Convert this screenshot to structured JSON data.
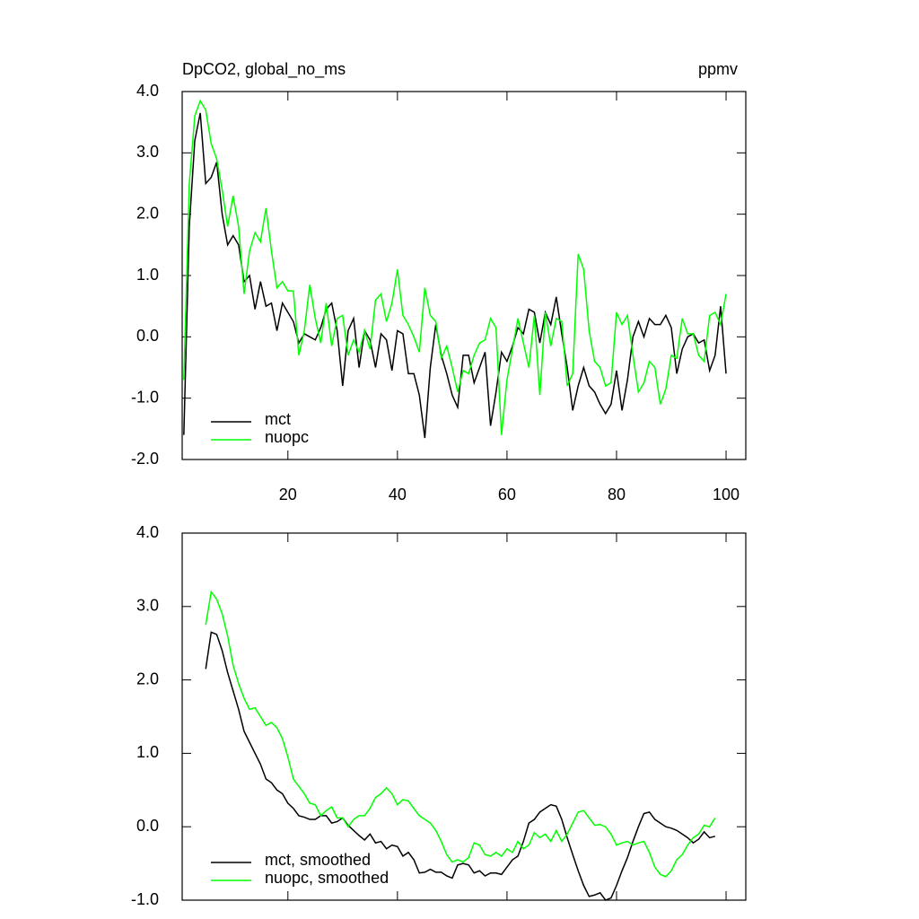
{
  "chart_data": [
    {
      "type": "line",
      "title": "DpCO2, global_no_ms",
      "units": "ppmv",
      "x": [
        1,
        2,
        3,
        4,
        5,
        6,
        7,
        8,
        9,
        10,
        11,
        12,
        13,
        14,
        15,
        16,
        17,
        18,
        19,
        20,
        21,
        22,
        23,
        24,
        25,
        26,
        27,
        28,
        29,
        30,
        31,
        32,
        33,
        34,
        35,
        36,
        37,
        38,
        39,
        40,
        41,
        42,
        43,
        44,
        45,
        46,
        47,
        48,
        49,
        50,
        51,
        52,
        53,
        54,
        55,
        56,
        57,
        58,
        59,
        60,
        61,
        62,
        63,
        64,
        65,
        66,
        67,
        68,
        69,
        70,
        71,
        72,
        73,
        74,
        75,
        76,
        77,
        78,
        79,
        80,
        81,
        82,
        83,
        84,
        85,
        86,
        87,
        88,
        89,
        90,
        91,
        92,
        93,
        94,
        95,
        96,
        97,
        98,
        99,
        100
      ],
      "series": [
        {
          "name": "mct",
          "color": "#000000",
          "values": [
            -1.6,
            1.8,
            3.2,
            3.65,
            2.5,
            2.6,
            2.85,
            2.0,
            1.5,
            1.65,
            1.5,
            0.9,
            1.0,
            0.45,
            0.9,
            0.5,
            0.55,
            0.1,
            0.55,
            0.4,
            0.25,
            -0.1,
            0.05,
            0.0,
            -0.05,
            0.15,
            0.45,
            0.55,
            0.1,
            -0.8,
            0.1,
            0.3,
            -0.5,
            0.1,
            -0.05,
            -0.5,
            0.05,
            -0.05,
            -0.55,
            0.1,
            0.05,
            -0.6,
            -0.6,
            -0.95,
            -1.65,
            -0.5,
            0.2,
            -0.3,
            -0.6,
            -0.95,
            -1.15,
            -0.3,
            -0.3,
            -0.75,
            -0.5,
            -0.25,
            -1.45,
            -0.9,
            -0.25,
            -0.4,
            -0.15,
            0.15,
            0.05,
            0.45,
            0.4,
            -0.1,
            0.4,
            0.2,
            0.65,
            0.05,
            -0.5,
            -1.2,
            -0.8,
            -0.5,
            -0.8,
            -0.9,
            -1.1,
            -1.25,
            -1.1,
            -0.55,
            -1.2,
            -0.7,
            0.0,
            0.25,
            0.0,
            0.3,
            0.2,
            0.2,
            0.35,
            0.15,
            -0.6,
            -0.2,
            0.0,
            0.05,
            -0.1,
            -0.05,
            -0.55,
            -0.3,
            0.5,
            -0.6
          ]
        },
        {
          "name": "nuopc",
          "color": "#00ff00",
          "values": [
            -0.7,
            2.5,
            3.6,
            3.85,
            3.7,
            3.15,
            2.9,
            2.4,
            1.8,
            2.3,
            1.8,
            0.7,
            1.4,
            1.7,
            1.55,
            2.1,
            1.4,
            0.8,
            0.9,
            0.75,
            0.75,
            -0.3,
            0.1,
            0.85,
            0.3,
            -0.1,
            0.55,
            -0.15,
            0.3,
            0.35,
            -0.3,
            -0.05,
            -0.25,
            0.1,
            -0.2,
            0.6,
            0.7,
            0.25,
            0.55,
            1.1,
            0.35,
            0.2,
            0.0,
            -0.25,
            0.8,
            0.35,
            0.25,
            -0.35,
            -0.15,
            -0.5,
            -0.9,
            -0.55,
            -0.6,
            -0.3,
            -0.1,
            -0.05,
            0.3,
            0.15,
            -1.6,
            -0.7,
            -0.2,
            0.3,
            -0.1,
            -0.5,
            0.35,
            -0.95,
            0.4,
            -0.15,
            0.3,
            0.25,
            -0.8,
            -0.6,
            1.35,
            1.1,
            0.1,
            -0.4,
            -0.5,
            -0.8,
            -0.75,
            0.4,
            0.2,
            0.35,
            -0.3,
            -0.9,
            -0.75,
            -0.4,
            -0.5,
            -1.1,
            -0.85,
            -0.3,
            -0.35,
            0.3,
            0.05,
            0.05,
            -0.3,
            -0.4,
            0.35,
            0.4,
            0.2,
            0.7
          ]
        }
      ],
      "xlim": [
        0.7,
        103.6
      ],
      "xticks": [
        20,
        40,
        60,
        80,
        100
      ],
      "ylim": [
        -2,
        4
      ],
      "yticks": [
        {
          "value": -2,
          "label": "-2.0"
        },
        {
          "value": -1,
          "label": "-1.0"
        },
        {
          "value": 0,
          "label": "0.0"
        },
        {
          "value": 1,
          "label": "1.0"
        },
        {
          "value": 2,
          "label": "2.0"
        },
        {
          "value": 3,
          "label": "3.0"
        },
        {
          "value": 4,
          "label": "4.0"
        }
      ],
      "legend": "lower left"
    },
    {
      "type": "line",
      "x": [
        5,
        6,
        7,
        8,
        9,
        10,
        11,
        12,
        13,
        14,
        15,
        16,
        17,
        18,
        19,
        20,
        21,
        22,
        23,
        24,
        25,
        26,
        27,
        28,
        29,
        30,
        31,
        32,
        33,
        34,
        35,
        36,
        37,
        38,
        39,
        40,
        41,
        42,
        43,
        44,
        45,
        46,
        47,
        48,
        49,
        50,
        51,
        52,
        53,
        54,
        55,
        56,
        57,
        58,
        59,
        60,
        61,
        62,
        63,
        64,
        65,
        66,
        67,
        68,
        69,
        70,
        71,
        72,
        73,
        74,
        75,
        76,
        77,
        78,
        79,
        80,
        81,
        82,
        83,
        84,
        85,
        86,
        87,
        88,
        89,
        90,
        91,
        92,
        93,
        94,
        95,
        96,
        97,
        98
      ],
      "series": [
        {
          "name": "mct, smoothed",
          "color": "#000000",
          "values": [
            2.15,
            2.65,
            2.62,
            2.4,
            2.1,
            1.85,
            1.6,
            1.3,
            1.15,
            1.0,
            0.85,
            0.65,
            0.6,
            0.5,
            0.45,
            0.32,
            0.25,
            0.15,
            0.13,
            0.1,
            0.1,
            0.15,
            0.15,
            0.05,
            0.07,
            0.12,
            0.02,
            -0.05,
            -0.12,
            -0.18,
            -0.1,
            -0.22,
            -0.2,
            -0.3,
            -0.25,
            -0.27,
            -0.4,
            -0.35,
            -0.45,
            -0.63,
            -0.62,
            -0.58,
            -0.62,
            -0.62,
            -0.67,
            -0.7,
            -0.52,
            -0.5,
            -0.52,
            -0.63,
            -0.6,
            -0.67,
            -0.63,
            -0.63,
            -0.65,
            -0.55,
            -0.45,
            -0.4,
            -0.2,
            0.05,
            0.1,
            0.2,
            0.25,
            0.3,
            0.28,
            0.1,
            -0.15,
            -0.38,
            -0.6,
            -0.8,
            -0.95,
            -0.93,
            -0.9,
            -1.0,
            -0.97,
            -0.8,
            -0.6,
            -0.42,
            -0.2,
            0.0,
            0.18,
            0.2,
            0.1,
            0.05,
            0.0,
            -0.02,
            -0.05,
            -0.1,
            -0.15,
            -0.22,
            -0.17,
            -0.07,
            -0.15,
            -0.13
          ]
        },
        {
          "name": "nuopc, smoothed",
          "color": "#00ff00",
          "values": [
            2.75,
            3.2,
            3.1,
            2.9,
            2.6,
            2.2,
            1.95,
            1.75,
            1.6,
            1.62,
            1.5,
            1.38,
            1.42,
            1.35,
            1.2,
            0.95,
            0.65,
            0.55,
            0.45,
            0.32,
            0.3,
            0.15,
            0.22,
            0.27,
            0.12,
            0.12,
            0.0,
            0.1,
            0.15,
            0.15,
            0.25,
            0.4,
            0.45,
            0.53,
            0.45,
            0.3,
            0.37,
            0.35,
            0.25,
            0.15,
            0.1,
            0.05,
            -0.05,
            -0.2,
            -0.38,
            -0.48,
            -0.45,
            -0.48,
            -0.42,
            -0.22,
            -0.25,
            -0.38,
            -0.4,
            -0.35,
            -0.4,
            -0.3,
            -0.35,
            -0.2,
            -0.3,
            -0.25,
            -0.08,
            -0.15,
            -0.1,
            -0.2,
            -0.05,
            -0.2,
            -0.1,
            0.05,
            0.2,
            0.22,
            0.12,
            0.02,
            0.03,
            0.0,
            -0.1,
            -0.25,
            -0.22,
            -0.2,
            -0.25,
            -0.22,
            -0.2,
            -0.35,
            -0.55,
            -0.65,
            -0.68,
            -0.6,
            -0.45,
            -0.38,
            -0.25,
            -0.15,
            -0.1,
            0.02,
            0.0,
            0.12
          ]
        }
      ],
      "xlim": [
        0.7,
        103.6
      ],
      "ylim": [
        -1,
        4
      ],
      "yticks": [
        {
          "value": -1,
          "label": "-1.0"
        },
        {
          "value": 0,
          "label": "0.0"
        },
        {
          "value": 1,
          "label": "1.0"
        },
        {
          "value": 2,
          "label": "2.0"
        },
        {
          "value": 3,
          "label": "3.0"
        },
        {
          "value": 4,
          "label": "4.0"
        }
      ],
      "legend": "lower left"
    }
  ]
}
